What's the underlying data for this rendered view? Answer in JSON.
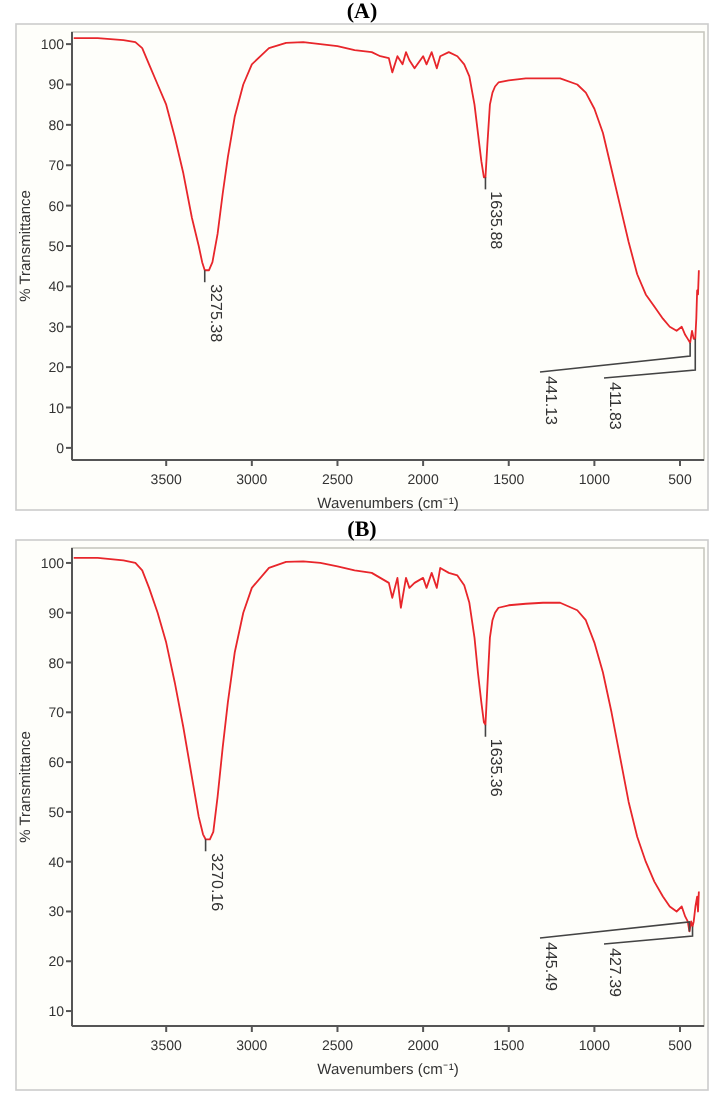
{
  "chart_data": [
    {
      "type": "line",
      "title": "(A)",
      "xlabel": "Wavenumbers (cm⁻¹)",
      "ylabel": "% Transmittance",
      "xlim": [
        4050,
        360
      ],
      "ylim": [
        -3,
        103
      ],
      "xticks": [
        3500,
        3000,
        2500,
        2000,
        1500,
        1000,
        500
      ],
      "yticks": [
        0,
        10,
        20,
        30,
        40,
        50,
        60,
        70,
        80,
        90,
        100
      ],
      "grid": false,
      "series": [
        {
          "color": "#e8262b",
          "x": [
            4040,
            3900,
            3750,
            3680,
            3640,
            3600,
            3550,
            3500,
            3450,
            3400,
            3350,
            3310,
            3290,
            3275,
            3250,
            3230,
            3200,
            3170,
            3140,
            3100,
            3050,
            3000,
            2900,
            2800,
            2700,
            2600,
            2500,
            2400,
            2300,
            2250,
            2200,
            2180,
            2150,
            2120,
            2100,
            2080,
            2050,
            2000,
            1980,
            1950,
            1920,
            1900,
            1850,
            1800,
            1760,
            1730,
            1700,
            1680,
            1660,
            1645,
            1636,
            1625,
            1610,
            1595,
            1580,
            1560,
            1500,
            1400,
            1300,
            1200,
            1100,
            1050,
            1000,
            950,
            900,
            850,
            800,
            750,
            700,
            650,
            600,
            560,
            520,
            490,
            470,
            455,
            441,
            430,
            420,
            411,
            405,
            400,
            395,
            390
          ],
          "values": [
            101.5,
            101.5,
            101,
            100.5,
            99,
            95,
            90,
            85,
            77,
            68,
            57,
            50,
            46,
            44,
            44,
            46,
            53,
            63,
            72,
            82,
            90,
            95,
            99,
            100.3,
            100.5,
            100,
            99.5,
            98.5,
            98,
            97,
            96.5,
            93,
            97,
            95,
            98,
            96,
            94,
            97,
            95,
            98,
            94,
            97,
            98,
            97,
            95,
            92,
            85,
            78,
            71,
            67,
            67,
            75,
            85,
            88,
            89.5,
            90.5,
            91,
            91.5,
            91.5,
            91.5,
            90,
            88,
            84,
            78,
            69,
            60,
            51,
            43,
            38,
            35,
            32,
            30,
            29,
            30,
            28,
            27,
            26,
            29,
            27,
            27,
            32,
            39,
            38,
            44
          ]
        }
      ],
      "annotations": [
        {
          "text": "3275.38",
          "x": 3275,
          "y": 44
        },
        {
          "text": "1635.88",
          "x": 1636,
          "y": 67
        },
        {
          "text": "441.13",
          "x": 441,
          "y": 26
        },
        {
          "text": "411.83",
          "x": 411,
          "y": 27
        }
      ]
    },
    {
      "type": "line",
      "title": "(B)",
      "xlabel": "Wavenumbers (cm⁻¹)",
      "ylabel": "% Transmittance",
      "xlim": [
        4050,
        360
      ],
      "ylim": [
        7,
        103
      ],
      "xticks": [
        3500,
        3000,
        2500,
        2000,
        1500,
        1000,
        500
      ],
      "yticks": [
        10,
        20,
        30,
        40,
        50,
        60,
        70,
        80,
        90,
        100
      ],
      "grid": false,
      "series": [
        {
          "color": "#e8262b",
          "x": [
            4040,
            3900,
            3750,
            3680,
            3640,
            3600,
            3550,
            3500,
            3450,
            3400,
            3350,
            3310,
            3285,
            3270,
            3245,
            3225,
            3200,
            3170,
            3140,
            3100,
            3050,
            3000,
            2900,
            2800,
            2700,
            2600,
            2500,
            2400,
            2300,
            2250,
            2200,
            2180,
            2150,
            2130,
            2100,
            2080,
            2050,
            2000,
            1980,
            1950,
            1920,
            1900,
            1850,
            1800,
            1760,
            1730,
            1700,
            1680,
            1660,
            1645,
            1636,
            1625,
            1610,
            1595,
            1580,
            1560,
            1500,
            1400,
            1300,
            1200,
            1100,
            1050,
            1000,
            950,
            900,
            850,
            800,
            750,
            700,
            650,
            600,
            560,
            520,
            490,
            470,
            455,
            445,
            435,
            427,
            420,
            410,
            400,
            395,
            390
          ],
          "values": [
            101,
            101,
            100.5,
            100,
            98.5,
            95,
            90,
            84,
            76,
            67,
            57,
            49,
            45.5,
            44.5,
            44.5,
            46,
            53,
            63,
            72,
            82,
            90,
            95,
            99,
            100.2,
            100.3,
            100,
            99.3,
            98.5,
            98,
            97,
            96,
            93,
            97,
            91,
            97,
            95,
            96,
            97,
            95,
            98,
            95,
            99,
            98,
            97.5,
            95.5,
            92,
            85,
            78,
            72,
            68,
            67.5,
            75,
            85,
            88.5,
            90,
            91,
            91.5,
            91.8,
            92,
            92,
            90.5,
            88.5,
            84,
            78,
            70,
            61,
            52,
            45,
            40,
            36,
            33,
            31,
            30,
            31,
            29,
            28,
            26,
            28,
            27,
            28,
            31,
            33,
            30,
            34
          ]
        }
      ],
      "annotations": [
        {
          "text": "3270.16",
          "x": 3270,
          "y": 44.5
        },
        {
          "text": "1635.36",
          "x": 1636,
          "y": 67.5
        },
        {
          "text": "445.49",
          "x": 445,
          "y": 26
        },
        {
          "text": "427.39",
          "x": 427,
          "y": 27
        }
      ]
    }
  ]
}
